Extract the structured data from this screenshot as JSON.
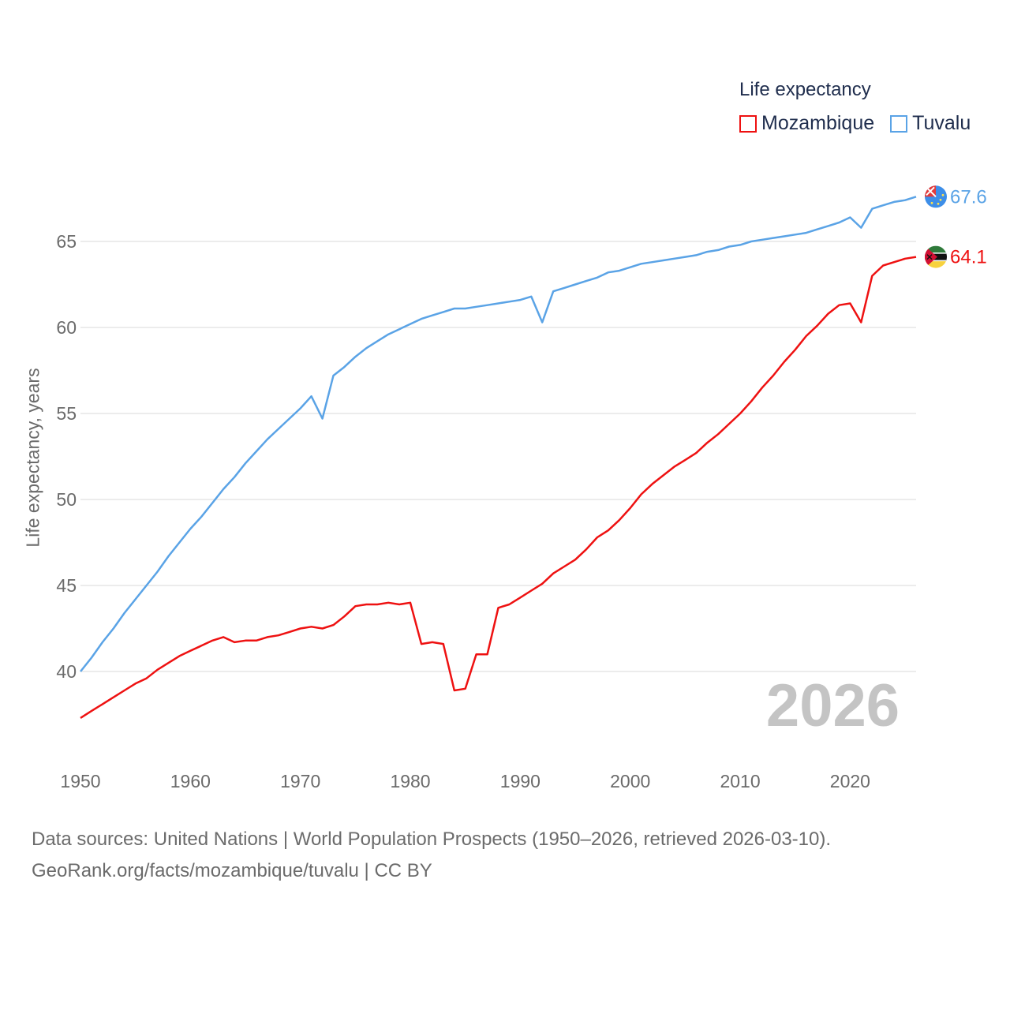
{
  "legend": {
    "title": "Life expectancy",
    "items": [
      {
        "name": "Mozambique",
        "color": "#ee1111"
      },
      {
        "name": "Tuvalu",
        "color": "#5aa3e6"
      }
    ]
  },
  "year_watermark": "2026",
  "source": {
    "line1": "Data sources: United Nations | World Population Prospects (1950–2026, retrieved 2026-03-10).",
    "line2": "GeoRank.org/facts/mozambique/tuvalu | CC BY"
  },
  "chart_data": {
    "type": "line",
    "title": "Life expectancy",
    "xlabel": "",
    "ylabel": "Life expectancy, years",
    "xlim": [
      1950,
      2026
    ],
    "ylim": [
      35.5,
      68.5
    ],
    "x_ticks": [
      1950,
      1960,
      1970,
      1980,
      1990,
      2000,
      2010,
      2020
    ],
    "y_ticks": [
      40,
      45,
      50,
      55,
      60,
      65
    ],
    "grid": true,
    "legend_position": "top-right",
    "x": [
      1950,
      1951,
      1952,
      1953,
      1954,
      1955,
      1956,
      1957,
      1958,
      1959,
      1960,
      1961,
      1962,
      1963,
      1964,
      1965,
      1966,
      1967,
      1968,
      1969,
      1970,
      1971,
      1972,
      1973,
      1974,
      1975,
      1976,
      1977,
      1978,
      1979,
      1980,
      1981,
      1982,
      1983,
      1984,
      1985,
      1986,
      1987,
      1988,
      1989,
      1990,
      1991,
      1992,
      1993,
      1994,
      1995,
      1996,
      1997,
      1998,
      1999,
      2000,
      2001,
      2002,
      2003,
      2004,
      2005,
      2006,
      2007,
      2008,
      2009,
      2010,
      2011,
      2012,
      2013,
      2014,
      2015,
      2016,
      2017,
      2018,
      2019,
      2020,
      2021,
      2022,
      2023,
      2024,
      2025,
      2026
    ],
    "series": [
      {
        "name": "Mozambique",
        "color": "#ee1111",
        "end_label": "64.1",
        "values": [
          37.3,
          37.7,
          38.1,
          38.5,
          38.9,
          39.3,
          39.6,
          40.1,
          40.5,
          40.9,
          41.2,
          41.5,
          41.8,
          42.0,
          41.7,
          41.8,
          41.8,
          42.0,
          42.1,
          42.3,
          42.5,
          42.6,
          42.5,
          42.7,
          43.2,
          43.8,
          43.9,
          43.9,
          44.0,
          43.9,
          44.0,
          41.6,
          41.7,
          41.6,
          38.9,
          39.0,
          41.0,
          41.0,
          43.7,
          43.9,
          44.3,
          44.7,
          45.1,
          45.7,
          46.1,
          46.5,
          47.1,
          47.8,
          48.2,
          48.8,
          49.5,
          50.3,
          50.9,
          51.4,
          51.9,
          52.3,
          52.7,
          53.3,
          53.8,
          54.4,
          55.0,
          55.7,
          56.5,
          57.2,
          58.0,
          58.7,
          59.5,
          60.1,
          60.8,
          61.3,
          61.4,
          60.3,
          63.0,
          63.6,
          63.8,
          64.0,
          64.1
        ]
      },
      {
        "name": "Tuvalu",
        "color": "#5aa3e6",
        "end_label": "67.6",
        "values": [
          40.0,
          40.8,
          41.7,
          42.5,
          43.4,
          44.2,
          45.0,
          45.8,
          46.7,
          47.5,
          48.3,
          49.0,
          49.8,
          50.6,
          51.3,
          52.1,
          52.8,
          53.5,
          54.1,
          54.7,
          55.3,
          56.0,
          54.7,
          57.2,
          57.7,
          58.3,
          58.8,
          59.2,
          59.6,
          59.9,
          60.2,
          60.5,
          60.7,
          60.9,
          61.1,
          61.1,
          61.2,
          61.3,
          61.4,
          61.5,
          61.6,
          61.8,
          60.3,
          62.1,
          62.3,
          62.5,
          62.7,
          62.9,
          63.2,
          63.3,
          63.5,
          63.7,
          63.8,
          63.9,
          64.0,
          64.1,
          64.2,
          64.4,
          64.5,
          64.7,
          64.8,
          65.0,
          65.1,
          65.2,
          65.3,
          65.4,
          65.5,
          65.7,
          65.9,
          66.1,
          66.4,
          65.8,
          66.9,
          67.1,
          67.3,
          67.4,
          67.6
        ]
      }
    ]
  }
}
